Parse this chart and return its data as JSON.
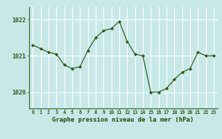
{
  "x": [
    0,
    1,
    2,
    3,
    4,
    5,
    6,
    7,
    8,
    9,
    10,
    11,
    12,
    13,
    14,
    15,
    16,
    17,
    18,
    19,
    20,
    21,
    22,
    23
  ],
  "y": [
    1021.3,
    1021.2,
    1021.1,
    1021.05,
    1020.75,
    1020.65,
    1020.7,
    1021.15,
    1021.5,
    1021.7,
    1021.75,
    1021.95,
    1021.4,
    1021.05,
    1021.0,
    1020.0,
    1020.0,
    1020.1,
    1020.35,
    1020.55,
    1020.65,
    1021.1,
    1021.0,
    1021.0
  ],
  "line_color": "#2d5a1b",
  "marker_color": "#2d5a1b",
  "bg_color": "#c8e8e8",
  "grid_color": "#ffffff",
  "ylabel_ticks": [
    1020,
    1021,
    1022
  ],
  "ylim": [
    1019.55,
    1022.35
  ],
  "xlim": [
    -0.5,
    23.5
  ],
  "xlabel": "Graphe pression niveau de la mer (hPa)",
  "xlabel_color": "#1a4a0a",
  "tick_color": "#1a4a0a",
  "axis_color": "#2d5a1b"
}
